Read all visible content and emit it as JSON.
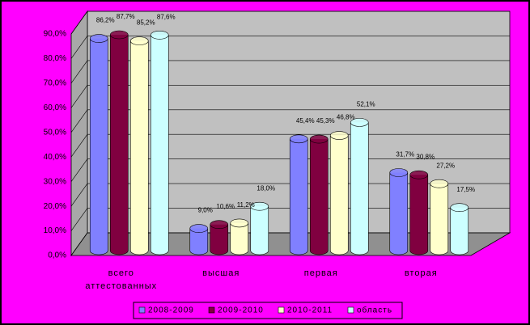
{
  "chart_data": {
    "type": "bar3d",
    "categories": [
      "всего аттестованных",
      "высшая",
      "первая",
      "вторая"
    ],
    "series": [
      {
        "name": "2008-2009",
        "color": "#8080ff",
        "values": [
          86.2,
          9.0,
          45.4,
          31.7
        ],
        "value_labels": [
          "86,2%",
          "9,0%",
          "45,4%",
          "31,7%"
        ]
      },
      {
        "name": "2009-2010",
        "color": "#800040",
        "values": [
          87.7,
          10.6,
          45.3,
          30.8
        ],
        "value_labels": [
          "87,7%",
          "10,6%",
          "45,3%",
          "30,8%"
        ]
      },
      {
        "name": "2010-2011",
        "color": "#ffffcc",
        "values": [
          85.2,
          11.2,
          46.8,
          27.2
        ],
        "value_labels": [
          "85,2%",
          "11,2%",
          "46,8%",
          "27,2%"
        ]
      },
      {
        "name": "область",
        "color": "#ccffff",
        "values": [
          87.6,
          18.0,
          52.1,
          17.5
        ],
        "value_labels": [
          "87,6%",
          "18,0%",
          "52,1%",
          "17,5%"
        ]
      }
    ],
    "ylim": [
      0,
      90
    ],
    "yticks": [
      {
        "value": 0,
        "label": "0,0%"
      },
      {
        "value": 10,
        "label": "10,0%"
      },
      {
        "value": 20,
        "label": "20,0%"
      },
      {
        "value": 30,
        "label": "30,0%"
      },
      {
        "value": 40,
        "label": "40,0%"
      },
      {
        "value": 50,
        "label": "50,0%"
      },
      {
        "value": 60,
        "label": "60,0%"
      },
      {
        "value": 70,
        "label": "70,0%"
      },
      {
        "value": 80,
        "label": "80,0%"
      },
      {
        "value": 90,
        "label": "90,0%"
      }
    ],
    "grid": true,
    "legend": "bottom"
  }
}
